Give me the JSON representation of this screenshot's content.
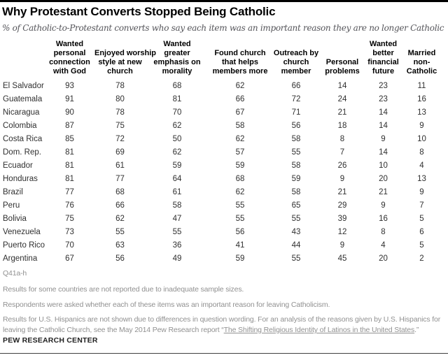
{
  "brand": {
    "bar_color": "#000000",
    "footnote_gray": "#919191"
  },
  "header": {
    "title": "Why Protestant Converts Stopped Being Catholic",
    "subtitle": "% of Catholic-to-Protestant converts who say each item was an important reason they are no longer Catholic"
  },
  "table": {
    "display_columns": [
      "Wanted\npersonal\nconnection\nwith God",
      "Enjoyed worship\nstyle at new\nchurch",
      "Wanted\ngreater\nemphasis on\nmorality",
      "Found church\nthat helps\nmembers more",
      "Outreach by\nchurch\nmember",
      "Personal\nproblems",
      "Wanted\nbetter\nfinancial\nfuture",
      "Married\nnon-\nCatholic"
    ]
  },
  "chart_data": {
    "type": "table",
    "title": "Why Protestant Converts Stopped Being Catholic",
    "subtitle": "% of Catholic-to-Protestant converts who say each item was an important reason they are no longer Catholic",
    "unit": "percent",
    "columns": [
      "Wanted personal connection with God",
      "Enjoyed worship style at new church",
      "Wanted greater emphasis on morality",
      "Found church that helps members more",
      "Outreach by church member",
      "Personal problems",
      "Wanted better financial future",
      "Married non-Catholic"
    ],
    "rows": [
      {
        "country": "El Salvador",
        "values": [
          93,
          78,
          68,
          62,
          66,
          14,
          23,
          11
        ]
      },
      {
        "country": "Guatemala",
        "values": [
          91,
          80,
          81,
          66,
          72,
          24,
          23,
          16
        ]
      },
      {
        "country": "Nicaragua",
        "values": [
          90,
          78,
          70,
          67,
          71,
          21,
          14,
          13
        ]
      },
      {
        "country": "Colombia",
        "values": [
          87,
          75,
          62,
          58,
          56,
          18,
          14,
          9
        ]
      },
      {
        "country": "Costa Rica",
        "values": [
          85,
          72,
          50,
          62,
          58,
          8,
          9,
          10
        ]
      },
      {
        "country": "Dom. Rep.",
        "values": [
          81,
          69,
          62,
          57,
          55,
          7,
          14,
          8
        ]
      },
      {
        "country": "Ecuador",
        "values": [
          81,
          61,
          59,
          59,
          58,
          26,
          10,
          4
        ]
      },
      {
        "country": "Honduras",
        "values": [
          81,
          77,
          64,
          68,
          59,
          9,
          20,
          13
        ]
      },
      {
        "country": "Brazil",
        "values": [
          77,
          68,
          61,
          62,
          58,
          21,
          21,
          9
        ]
      },
      {
        "country": "Peru",
        "values": [
          76,
          66,
          58,
          55,
          65,
          29,
          9,
          7
        ]
      },
      {
        "country": "Bolivia",
        "values": [
          75,
          62,
          47,
          55,
          55,
          39,
          16,
          5
        ]
      },
      {
        "country": "Venezuela",
        "values": [
          73,
          55,
          55,
          56,
          43,
          12,
          8,
          6
        ]
      },
      {
        "country": "Puerto Rico",
        "values": [
          70,
          63,
          36,
          41,
          44,
          9,
          4,
          5
        ]
      },
      {
        "country": "Argentina",
        "values": [
          67,
          56,
          49,
          59,
          55,
          45,
          20,
          2
        ]
      }
    ]
  },
  "footnotes": {
    "question_ref": "Q41a-h",
    "note1": "Results for some countries are not reported due to inadequate sample sizes.",
    "note2": "Respondents were asked whether each of these items was an important reason for leaving Catholicism.",
    "note3_before_link": "Results for U.S. Hispanics are not shown due to differences in question wording. For an analysis of the reasons given by U.S. Hispanics for leaving the Catholic Church, see the May 2014 Pew Research report “",
    "note3_link": "The Shifting Religious Identity of Latinos in the United States",
    "note3_after_link": ".”"
  },
  "source": {
    "label": "PEW RESEARCH CENTER"
  }
}
